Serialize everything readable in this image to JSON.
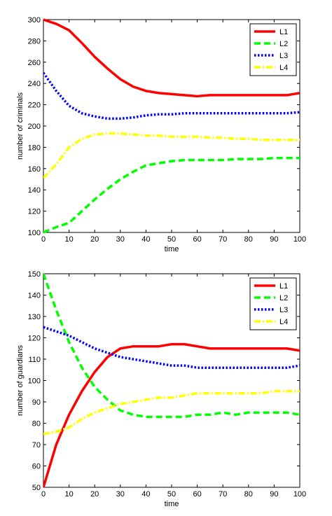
{
  "chart_data": [
    {
      "type": "line",
      "title": "",
      "xlabel": "time",
      "ylabel": "number of criminals",
      "xlim": [
        0,
        100
      ],
      "ylim": [
        100,
        300
      ],
      "xticks": [
        "0",
        "10",
        "20",
        "30",
        "40",
        "50",
        "60",
        "70",
        "80",
        "90",
        "100"
      ],
      "yticks": [
        "100",
        "120",
        "140",
        "160",
        "180",
        "200",
        "220",
        "240",
        "260",
        "280",
        "300"
      ],
      "grid": false,
      "legend_position": "top-right",
      "x": [
        0,
        5,
        10,
        15,
        20,
        25,
        30,
        35,
        40,
        45,
        50,
        55,
        60,
        65,
        70,
        75,
        80,
        85,
        90,
        95,
        100
      ],
      "series": [
        {
          "name": "L1",
          "color": "#ff0000",
          "dash": "solid",
          "values": [
            300,
            296,
            290,
            278,
            265,
            254,
            244,
            237,
            233,
            231,
            230,
            229,
            228,
            229,
            229,
            229,
            229,
            229,
            229,
            229,
            231
          ]
        },
        {
          "name": "L2",
          "color": "#00ff00",
          "dash": "dashed",
          "values": [
            100,
            105,
            109,
            120,
            131,
            141,
            150,
            157,
            163,
            165,
            167,
            168,
            168,
            168,
            168,
            169,
            169,
            169,
            170,
            170,
            170
          ]
        },
        {
          "name": "L3",
          "color": "#0000ff",
          "dash": "dotted",
          "values": [
            250,
            233,
            219,
            212,
            209,
            207,
            207,
            208,
            210,
            211,
            211,
            212,
            212,
            212,
            212,
            212,
            212,
            212,
            212,
            212,
            213
          ]
        },
        {
          "name": "L4",
          "color": "#ffff00",
          "dash": "dashdot",
          "values": [
            151,
            164,
            180,
            188,
            192,
            193,
            193,
            192,
            191,
            191,
            190,
            190,
            190,
            189,
            189,
            188,
            188,
            187,
            187,
            187,
            187
          ]
        }
      ]
    },
    {
      "type": "line",
      "title": "",
      "xlabel": "time",
      "ylabel": "number of guardians",
      "xlim": [
        0,
        100
      ],
      "ylim": [
        50,
        150
      ],
      "xticks": [
        "0",
        "10",
        "20",
        "30",
        "40",
        "50",
        "60",
        "70",
        "80",
        "90",
        "100"
      ],
      "yticks": [
        "50",
        "60",
        "70",
        "80",
        "90",
        "100",
        "110",
        "120",
        "130",
        "140",
        "150"
      ],
      "grid": false,
      "legend_position": "top-right",
      "x": [
        0,
        5,
        10,
        15,
        20,
        25,
        30,
        35,
        40,
        45,
        50,
        55,
        60,
        65,
        70,
        75,
        80,
        85,
        90,
        95,
        100
      ],
      "series": [
        {
          "name": "L1",
          "color": "#ff0000",
          "dash": "solid",
          "values": [
            50,
            70,
            84,
            95,
            104,
            111,
            115,
            116,
            116,
            116,
            117,
            117,
            116,
            115,
            115,
            115,
            115,
            115,
            115,
            115,
            114
          ]
        },
        {
          "name": "L2",
          "color": "#00ff00",
          "dash": "dashed",
          "values": [
            150,
            133,
            118,
            106,
            97,
            91,
            86,
            84,
            83,
            83,
            83,
            83,
            84,
            84,
            85,
            84,
            85,
            85,
            85,
            85,
            84
          ]
        },
        {
          "name": "L3",
          "color": "#0000ff",
          "dash": "dotted",
          "values": [
            125,
            123,
            121,
            118,
            115,
            113,
            111,
            110,
            109,
            108,
            107,
            107,
            106,
            106,
            106,
            106,
            106,
            106,
            106,
            106,
            107
          ]
        },
        {
          "name": "L4",
          "color": "#ffff00",
          "dash": "dashdot",
          "values": [
            75,
            76,
            78,
            82,
            85,
            87,
            89,
            90,
            91,
            92,
            92,
            93,
            94,
            94,
            94,
            94,
            94,
            94,
            95,
            95,
            95
          ]
        }
      ]
    }
  ]
}
